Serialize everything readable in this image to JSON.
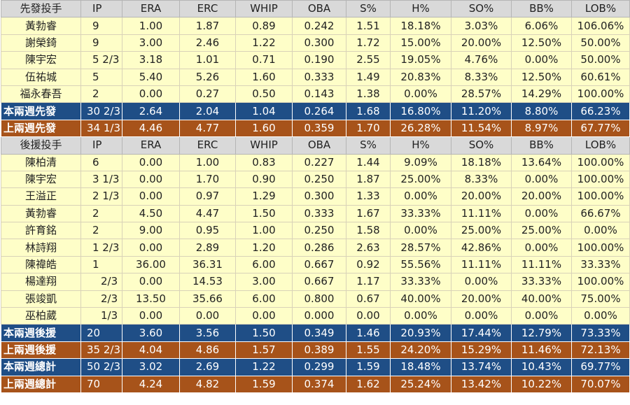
{
  "colors": {
    "header_bg": "#d9d9d9",
    "row_bg": "#fefec8",
    "blue_summary": "#1f4e86",
    "orange_summary": "#a7531a"
  },
  "starters": {
    "header": [
      "先發投手",
      "IP",
      "ERA",
      "ERC",
      "WHIP",
      "OBA",
      "S%",
      "H%",
      "SO%",
      "BB%",
      "LOB%"
    ],
    "rows": [
      [
        "黃勃睿",
        "9",
        "1.00",
        "1.87",
        "0.89",
        "0.242",
        "1.51",
        "18.18%",
        "3.03%",
        "6.06%",
        "106.06%"
      ],
      [
        "謝榮錡",
        "9",
        "3.00",
        "2.46",
        "1.22",
        "0.300",
        "1.72",
        "15.00%",
        "20.00%",
        "12.50%",
        "50.00%"
      ],
      [
        "陳宇宏",
        "5 2/3",
        "3.18",
        "1.01",
        "0.71",
        "0.190",
        "2.55",
        "19.05%",
        "4.76%",
        "0.00%",
        "50.00%"
      ],
      [
        "伍祐城",
        "5",
        "5.40",
        "5.26",
        "1.60",
        "0.333",
        "1.49",
        "20.83%",
        "8.33%",
        "12.50%",
        "60.61%"
      ],
      [
        "福永春吾",
        "2",
        "0.00",
        "0.27",
        "0.50",
        "0.143",
        "1.38",
        "0.00%",
        "28.57%",
        "14.29%",
        "100.00%"
      ]
    ],
    "summary_this": [
      "本兩週先發",
      "30 2/3",
      "2.64",
      "2.04",
      "1.04",
      "0.264",
      "1.68",
      "16.80%",
      "11.20%",
      "8.80%",
      "66.23%"
    ],
    "summary_last": [
      "上兩週先發",
      "34 1/3",
      "4.46",
      "4.77",
      "1.60",
      "0.359",
      "1.70",
      "26.28%",
      "11.54%",
      "8.97%",
      "67.77%"
    ]
  },
  "relievers": {
    "header": [
      "後援投手",
      "IP",
      "ERA",
      "ERC",
      "WHIP",
      "OBA",
      "S%",
      "H%",
      "SO%",
      "BB%",
      "LOB%"
    ],
    "rows": [
      [
        "陳柏清",
        "6",
        "0.00",
        "1.00",
        "0.83",
        "0.227",
        "1.44",
        "9.09%",
        "18.18%",
        "13.64%",
        "100.00%"
      ],
      [
        "陳宇宏",
        "3 1/3",
        "0.00",
        "1.70",
        "0.90",
        "0.250",
        "1.87",
        "25.00%",
        "8.33%",
        "0.00%",
        "100.00%"
      ],
      [
        "王溢正",
        "2 1/3",
        "0.00",
        "0.97",
        "1.29",
        "0.300",
        "1.33",
        "0.00%",
        "20.00%",
        "20.00%",
        "100.00%"
      ],
      [
        "黃勃睿",
        "2",
        "4.50",
        "4.47",
        "1.50",
        "0.333",
        "1.67",
        "33.33%",
        "11.11%",
        "0.00%",
        "66.67%"
      ],
      [
        "許育銘",
        "2",
        "9.00",
        "0.95",
        "1.00",
        "0.250",
        "1.58",
        "0.00%",
        "25.00%",
        "25.00%",
        "0.00%"
      ],
      [
        "林詩翔",
        "1 2/3",
        "0.00",
        "2.89",
        "1.20",
        "0.286",
        "2.63",
        "28.57%",
        "42.86%",
        "0.00%",
        "100.00%"
      ],
      [
        "陳禕皓",
        "1",
        "36.00",
        "36.31",
        "6.00",
        "0.667",
        "0.92",
        "55.56%",
        "11.11%",
        "11.11%",
        "33.33%"
      ],
      [
        "楊達翔",
        "2/3",
        "0.00",
        "14.53",
        "3.00",
        "0.667",
        "1.17",
        "33.33%",
        "0.00%",
        "33.33%",
        "100.00%"
      ],
      [
        "張竣凱",
        "2/3",
        "13.50",
        "35.66",
        "6.00",
        "0.800",
        "0.67",
        "40.00%",
        "20.00%",
        "40.00%",
        "75.00%"
      ],
      [
        "巫柏葳",
        "1/3",
        "0.00",
        "0.00",
        "0.00",
        "0.000",
        "0.00",
        "0.00%",
        "0.00%",
        "0.00%",
        "0.00%"
      ]
    ],
    "summary_this": [
      "本兩週後援",
      "20",
      "3.60",
      "3.56",
      "1.50",
      "0.349",
      "1.46",
      "20.93%",
      "17.44%",
      "12.79%",
      "73.33%"
    ],
    "summary_last": [
      "上兩週後援",
      "35 2/3",
      "4.04",
      "4.86",
      "1.57",
      "0.389",
      "1.55",
      "24.20%",
      "15.29%",
      "11.46%",
      "72.13%"
    ]
  },
  "totals": {
    "this": [
      "本兩週總計",
      "50 2/3",
      "3.02",
      "2.69",
      "1.22",
      "0.299",
      "1.59",
      "18.48%",
      "13.74%",
      "10.43%",
      "69.77%"
    ],
    "last": [
      "上兩週總計",
      "70",
      "4.24",
      "4.82",
      "1.59",
      "0.374",
      "1.62",
      "25.24%",
      "13.42%",
      "10.22%",
      "70.07%"
    ]
  }
}
